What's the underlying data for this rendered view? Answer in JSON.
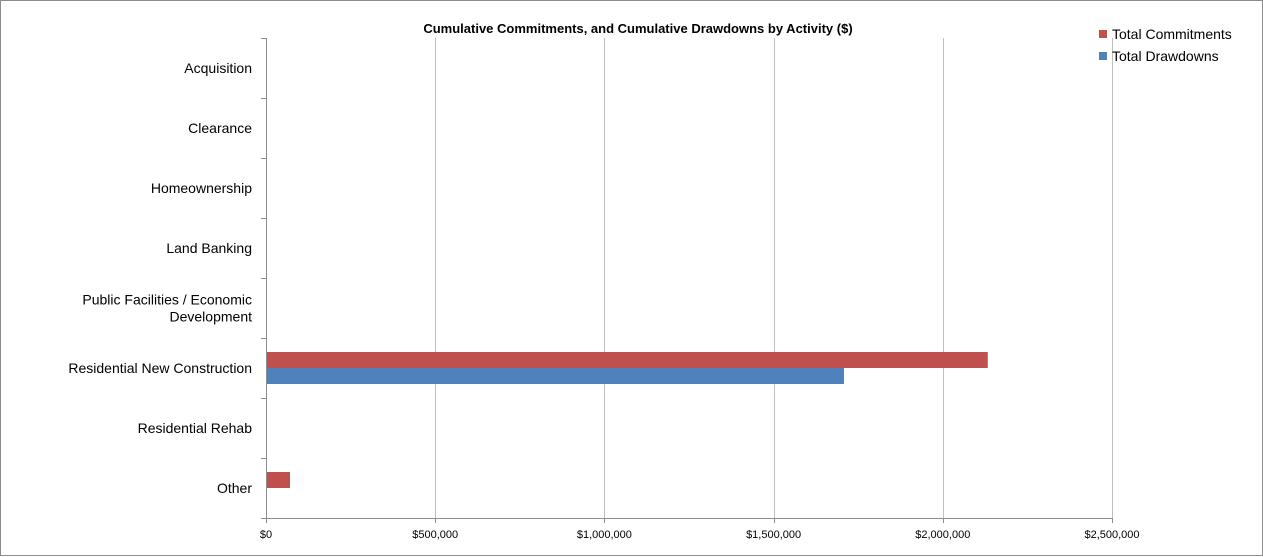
{
  "chart_data": {
    "type": "bar",
    "orientation": "horizontal",
    "title": "Cumulative Commitments, and Cumulative Drawdowns by Activity ($)",
    "categories": [
      [
        "Acquisition"
      ],
      [
        "Clearance"
      ],
      [
        "Homeownership"
      ],
      [
        "Land Banking"
      ],
      [
        "Public Facilities / Economic",
        "Development"
      ],
      [
        "Residential New Construction"
      ],
      [
        "Residential Rehab"
      ],
      [
        "Other"
      ]
    ],
    "series": [
      {
        "name": "Total Commitments",
        "color": "#c0504d",
        "values": [
          0,
          0,
          0,
          0,
          0,
          2130000,
          0,
          68000
        ]
      },
      {
        "name": "Total Drawdowns",
        "color": "#4f81bd",
        "values": [
          0,
          0,
          0,
          0,
          0,
          1705000,
          0,
          0
        ]
      }
    ],
    "x_ticks": [
      "$0",
      "$500,000",
      "$1,000,000",
      "$1,500,000",
      "$2,000,000",
      "$2,500,000"
    ],
    "xlim": [
      0,
      2500000
    ],
    "xlabel": "",
    "ylabel": "",
    "grid": "vertical major gridlines",
    "legend_position": "top-right"
  }
}
